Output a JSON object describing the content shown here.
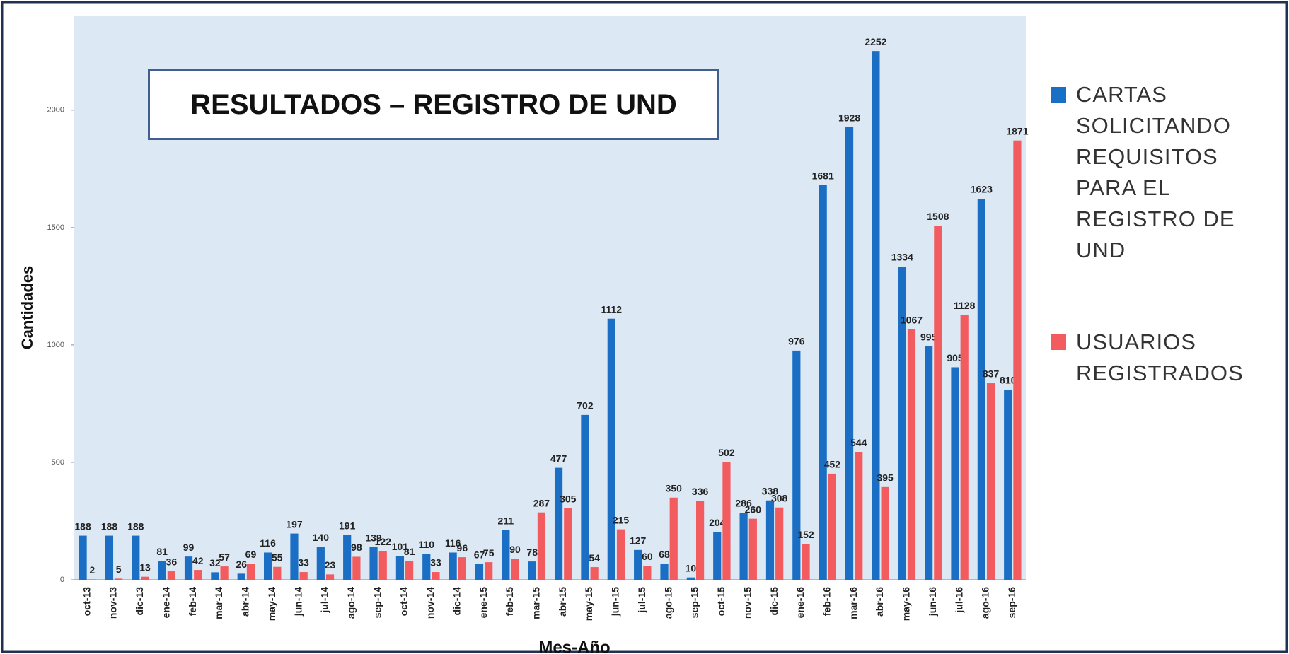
{
  "chart_data": {
    "type": "bar",
    "title": "RESULTADOS – REGISTRO DE UND",
    "y_label": "Cantidades",
    "x_label": "Mes-Año",
    "categories": [
      "oct-13",
      "nov-13",
      "dic-13",
      "ene-14",
      "feb-14",
      "mar-14",
      "abr-14",
      "may-14",
      "jun-14",
      "jul-14",
      "ago-14",
      "sep-14",
      "oct-14",
      "nov-14",
      "dic-14",
      "ene-15",
      "feb-15",
      "mar-15",
      "abr-15",
      "may-15",
      "jun-15",
      "jul-15",
      "ago-15",
      "sep-15",
      "oct-15",
      "nov-15",
      "dic-15",
      "ene-16",
      "feb-16",
      "mar-16",
      "abr-16",
      "may-16",
      "jun-16",
      "jul-16",
      "ago-16",
      "sep-16"
    ],
    "series": [
      {
        "name": "CARTAS SOLICITANDO REQUISITOS PARA EL REGISTRO DE UND",
        "color": "#1a6fc4",
        "values": [
          188,
          188,
          188,
          81,
          99,
          32,
          26,
          116,
          197,
          140,
          191,
          139,
          101,
          110,
          116,
          67,
          211,
          78,
          477,
          702,
          1112,
          127,
          68,
          10,
          204,
          286,
          338,
          976,
          1681,
          1928,
          2252,
          1334,
          995,
          905,
          1623,
          810
        ]
      },
      {
        "name": "USUARIOS REGISTRADOS",
        "color": "#f25c5f",
        "values": [
          2,
          5,
          13,
          36,
          42,
          57,
          69,
          55,
          33,
          23,
          98,
          122,
          81,
          33,
          96,
          75,
          90,
          287,
          305,
          54,
          215,
          60,
          350,
          336,
          502,
          260,
          308,
          152,
          452,
          544,
          395,
          1067,
          1508,
          1128,
          837,
          1871
        ]
      }
    ],
    "ylim": [
      0,
      2400
    ],
    "yticks": [
      0,
      500,
      1000,
      1500,
      2000
    ],
    "plot_background": "#dce9f5"
  }
}
